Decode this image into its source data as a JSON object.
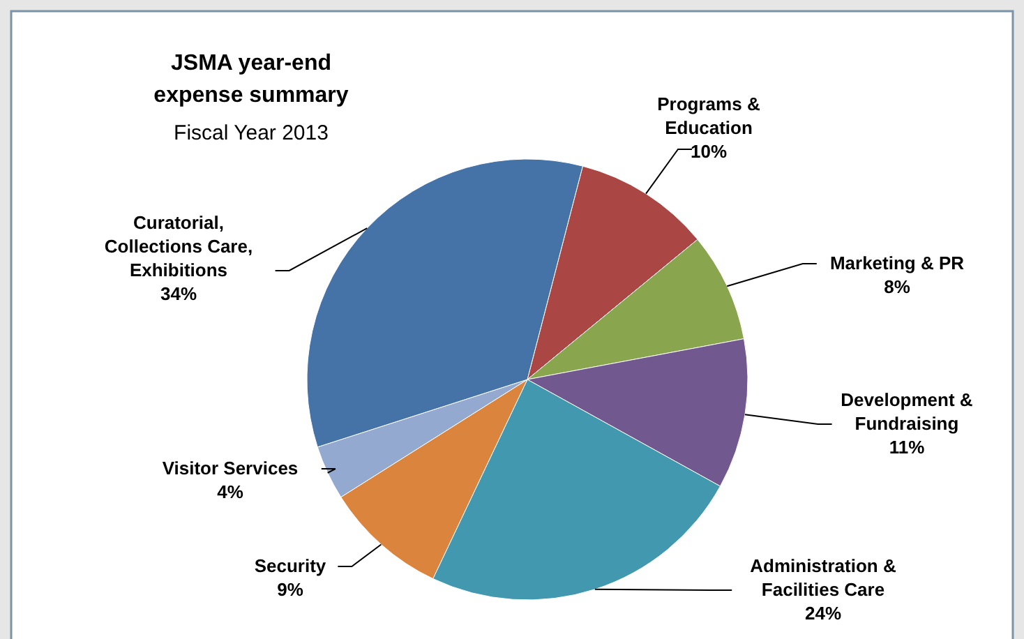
{
  "chart_data": {
    "type": "pie",
    "title": "JSMA year-end expense summary",
    "subtitle": "Fiscal Year 2013",
    "categories": [
      "Programs & Education",
      "Marketing & PR",
      "Development & Fundraising",
      "Administration & Facilities Care",
      "Security",
      "Visitor Services",
      "Curatorial, Collections Care, Exhibitions"
    ],
    "values": [
      10,
      8,
      11,
      24,
      9,
      4,
      34
    ],
    "value_labels": [
      "10%",
      "8%",
      "11%",
      "24%",
      "9%",
      "4%",
      "34%"
    ],
    "colors": [
      "#aa4643",
      "#89a54e",
      "#71588f",
      "#4198af",
      "#db843d",
      "#93a9cf",
      "#4572a7"
    ]
  }
}
